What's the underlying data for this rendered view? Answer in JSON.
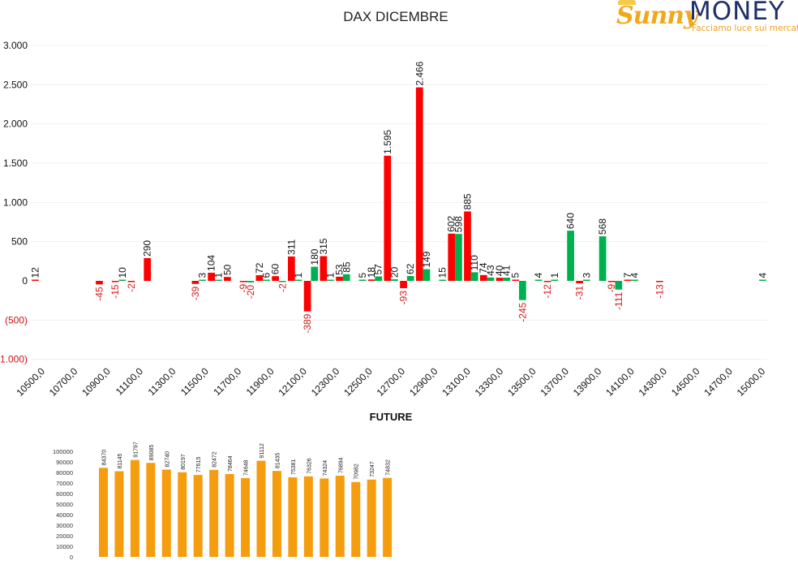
{
  "branding": {
    "logo_sun": "Sunny",
    "logo_money": "MONEY",
    "tagline": "Facciamo luce sui mercati"
  },
  "colors": {
    "positive": "#00b050",
    "negative": "#ff0000",
    "negative_label": "#e01010",
    "future_bar": "#f59d0e"
  },
  "chart_data": [
    {
      "type": "bar",
      "title": "DAX DICEMBRE",
      "xlabel": "",
      "ylabel": "",
      "ylim": [
        -1000,
        3000
      ],
      "yticks": [
        {
          "value": 3000,
          "label": "3.000"
        },
        {
          "value": 2500,
          "label": "2.500"
        },
        {
          "value": 2000,
          "label": "2.000"
        },
        {
          "value": 1500,
          "label": "1.500"
        },
        {
          "value": 1000,
          "label": "1.000"
        },
        {
          "value": 500,
          "label": "500"
        },
        {
          "value": 0,
          "label": "0"
        },
        {
          "value": -500,
          "label": "(500)"
        },
        {
          "value": -1000,
          "label": "(1.000)"
        }
      ],
      "categories": [
        "10500,0",
        "10600,0",
        "10700,0",
        "10800,0",
        "10900,0",
        "11000,0",
        "11100,0",
        "11200,0",
        "11300,0",
        "11400,0",
        "11500,0",
        "11600,0",
        "11700,0",
        "11800,0",
        "11900,0",
        "12000,0",
        "12100,0",
        "12200,0",
        "12300,0",
        "12400,0",
        "12500,0",
        "12600,0",
        "12700,0",
        "12800,0",
        "12900,0",
        "13000,0",
        "13100,0",
        "13200,0",
        "13300,0",
        "13400,0",
        "13500,0",
        "13600,0",
        "13700,0",
        "13800,0",
        "13900,0",
        "14000,0",
        "14100,0",
        "14200,0",
        "14300,0",
        "14400,0",
        "14500,0",
        "14600,0",
        "14700,0",
        "14800,0",
        "14900,0",
        "15000,0"
      ],
      "xtick_labels": [
        "10500,0",
        "10700,0",
        "10900,0",
        "11100,0",
        "11300,0",
        "11500,0",
        "11700,0",
        "11900,0",
        "12100,0",
        "12300,0",
        "12500,0",
        "12700,0",
        "12900,0",
        "13100,0",
        "13300,0",
        "13500,0",
        "13700,0",
        "13900,0",
        "14100,0",
        "14300,0",
        "14500,0",
        "14700,0",
        "15000,0"
      ],
      "series": [
        {
          "color": "#ff0000",
          "values": [
            12,
            null,
            null,
            null,
            -45,
            -15,
            -2,
            290,
            null,
            null,
            -39,
            104,
            50,
            -9,
            72,
            60,
            311,
            -389,
            315,
            53,
            null,
            18,
            1595,
            -93,
            2466,
            null,
            602,
            885,
            74,
            40,
            5,
            null,
            -12,
            null,
            -31,
            null,
            -9,
            7,
            null,
            -13,
            null,
            null,
            null,
            null,
            null,
            null
          ],
          "labels": [
            "12",
            "",
            "",
            "",
            "-45",
            "-15",
            "-2",
            "290",
            "",
            "",
            "-39",
            "104",
            "50",
            "-9",
            "72",
            "60",
            "311",
            "-389",
            "315",
            "53",
            "",
            "18",
            "1.595",
            "-93",
            "2.466",
            "",
            "602",
            "885",
            "74",
            "40",
            "5",
            "",
            "-12",
            "",
            "-31",
            "",
            "-9",
            "7",
            "",
            "-13",
            "",
            "",
            "",
            "",
            "",
            ""
          ]
        },
        {
          "color": "#00b050",
          "values": [
            null,
            null,
            null,
            null,
            null,
            10,
            null,
            null,
            null,
            null,
            3,
            1,
            null,
            -20,
            6,
            -2,
            1,
            180,
            1,
            85,
            5,
            57,
            20,
            62,
            149,
            15,
            598,
            110,
            43,
            41,
            -245,
            4,
            1,
            640,
            3,
            568,
            -111,
            4,
            null,
            null,
            null,
            null,
            null,
            null,
            null,
            4
          ],
          "labels": [
            "",
            "",
            "",
            "",
            "",
            "10",
            "",
            "",
            "",
            "",
            "3",
            "1",
            "",
            "-20",
            "6",
            "-2",
            "1",
            "180",
            "1",
            "85",
            "5",
            "57",
            "20",
            "62",
            "149",
            "15",
            "598",
            "110",
            "43",
            "41",
            "-245",
            "4",
            "1",
            "640",
            "3",
            "568",
            "-111",
            "4",
            "",
            "",
            "",
            "",
            "",
            "",
            "",
            "4"
          ]
        }
      ]
    },
    {
      "type": "bar",
      "title": "FUTURE",
      "xlabel": "",
      "ylabel": "",
      "ylim": [
        0,
        100000
      ],
      "yticks": [
        {
          "value": 100000,
          "label": "100000"
        },
        {
          "value": 90000,
          "label": "90000"
        },
        {
          "value": 80000,
          "label": "80000"
        },
        {
          "value": 70000,
          "label": "70000"
        },
        {
          "value": 60000,
          "label": "60000"
        },
        {
          "value": 50000,
          "label": "50000"
        },
        {
          "value": 40000,
          "label": "40000"
        },
        {
          "value": 30000,
          "label": "30000"
        },
        {
          "value": 20000,
          "label": "20000"
        },
        {
          "value": 10000,
          "label": "10000"
        },
        {
          "value": 0,
          "label": "0"
        }
      ],
      "values": [
        84370,
        81145,
        91797,
        89085,
        82740,
        80197,
        77615,
        82472,
        78464,
        74648,
        91112,
        81435,
        75381,
        76326,
        74324,
        76894,
        70982,
        73247,
        74832
      ],
      "labels": [
        "84370",
        "81145",
        "91797",
        "89085",
        "82740",
        "80197",
        "77615",
        "82472",
        "78464",
        "74648",
        "91112",
        "81435",
        "75381",
        "76326",
        "74324",
        "76894",
        "70982",
        "73247",
        "74832"
      ]
    }
  ]
}
